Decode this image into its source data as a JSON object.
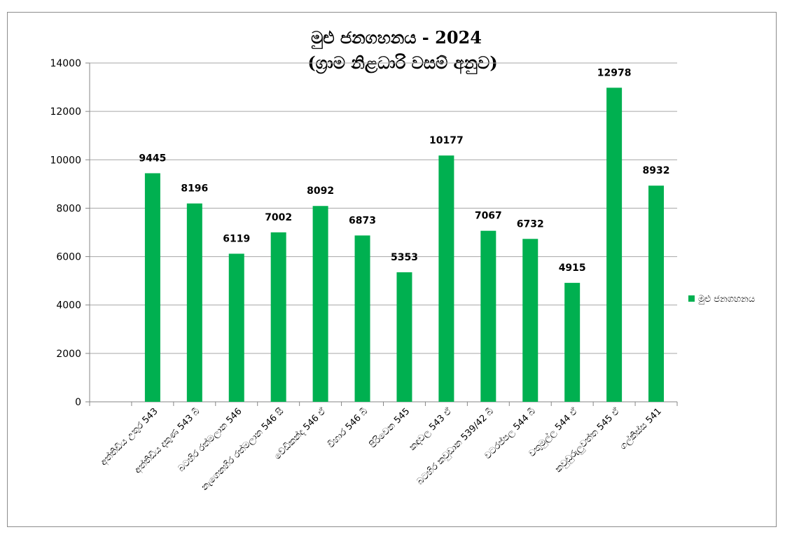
{
  "chart_data": {
    "type": "bar",
    "title": "මුළු ජනගහනය  - 2024",
    "subtitle": "(ග්‍රාම නිළධාරි වසම් අනුව)",
    "xlabel": "",
    "ylabel": "",
    "ylim": [
      0,
      14000
    ],
    "yticks": [
      0,
      2000,
      4000,
      6000,
      8000,
      10000,
      12000,
      14000
    ],
    "grid": true,
    "legend_position": "right",
    "colors": {
      "bar": "#00b050",
      "grid": "#a6a6a6",
      "axis": "#868686"
    },
    "categories": [
      "",
      "අත්තිඩිය උතුර 543",
      "අත්තිඩිය දකුණ 543 බී",
      "බටහිර රත්මලාන 546",
      "නැගෙනහිර රත්මලාන 546 සී",
      "වේඩිකන්ද 546 ඒ",
      "විහාර 546 බී",
      "පිරිවෙන 545",
      "කඳවල 543 ඒ",
      "බටහිර කවුඩාන 539/42 බී",
      "වටරප්පල 544 බී",
      "වතුමුල්ල 544 ඒ",
      "කවුඩුරුලුවත්ත 545 ඒ",
      "ගල්කිස්ස 541"
    ],
    "series": [
      {
        "name": "මුළු ජනගහනය",
        "values": [
          null,
          9445,
          8196,
          6119,
          7002,
          8092,
          6873,
          5353,
          10177,
          7067,
          6732,
          4915,
          12978,
          8932
        ]
      }
    ]
  }
}
